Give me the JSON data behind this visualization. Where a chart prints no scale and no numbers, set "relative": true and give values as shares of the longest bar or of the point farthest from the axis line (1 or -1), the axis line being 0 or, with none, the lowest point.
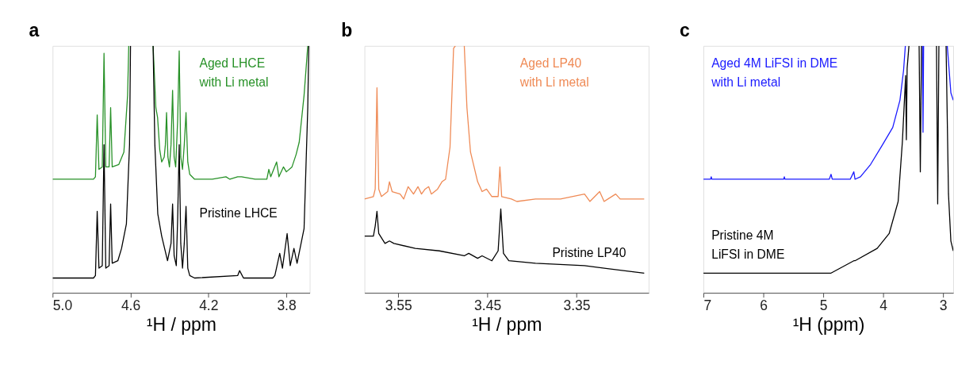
{
  "chart_data": [
    {
      "type": "line",
      "title": "a",
      "xlabel": "¹H / ppm",
      "relative": true,
      "xlim": [
        5.0,
        3.68
      ],
      "xticks": [
        {
          "value": 5.0,
          "label": "5.0"
        },
        4.6,
        4.2,
        3.8
      ],
      "grid": false,
      "series": [
        {
          "name": "Aged LHCE\nwith Li metal",
          "color": "#279127",
          "x": [
            5.0,
            4.79,
            4.78,
            4.771,
            4.762,
            4.745,
            4.736,
            4.727,
            4.71,
            4.702,
            4.694,
            4.66,
            4.634,
            4.615,
            4.609,
            4.55,
            4.484,
            4.47,
            4.461,
            4.45,
            4.44,
            4.427,
            4.421,
            4.415,
            4.408,
            4.4,
            4.392,
            4.384,
            4.376,
            4.368,
            4.358,
            4.35,
            4.342,
            4.333,
            4.324,
            4.315,
            4.306,
            4.296,
            4.271,
            4.18,
            4.11,
            4.09,
            4.05,
            4.03,
            3.96,
            3.9,
            3.89,
            3.88,
            3.85,
            3.838,
            3.815,
            3.8,
            3.771,
            3.75,
            3.734,
            3.709,
            3.69
          ],
          "values": [
            0.46,
            0.46,
            0.47,
            0.72,
            0.5,
            0.51,
            0.97,
            0.51,
            0.51,
            0.75,
            0.51,
            0.52,
            0.57,
            0.8,
            1,
            null,
            1,
            0.75,
            0.71,
            0.58,
            0.53,
            0.55,
            0.6,
            0.73,
            0.55,
            0.51,
            0.6,
            0.82,
            0.55,
            0.51,
            0.7,
            0.98,
            0.55,
            0.5,
            0.6,
            0.73,
            0.53,
            0.48,
            0.46,
            0.46,
            0.47,
            0.46,
            0.47,
            0.47,
            0.46,
            0.46,
            0.5,
            0.47,
            0.53,
            0.47,
            0.51,
            0.49,
            0.51,
            0.56,
            0.61,
            0.8,
            1
          ]
        },
        {
          "name": "Pristine LHCE",
          "color": "#000000",
          "x": [
            5.0,
            4.79,
            4.78,
            4.771,
            4.762,
            4.745,
            4.736,
            4.727,
            4.71,
            4.702,
            4.694,
            4.665,
            4.646,
            4.621,
            4.605,
            4.6,
            4.55,
            4.484,
            4.475,
            4.46,
            4.44,
            4.41,
            4.392,
            4.384,
            4.376,
            4.365,
            4.358,
            4.35,
            4.342,
            4.333,
            4.324,
            4.315,
            4.306,
            4.296,
            4.271,
            4.05,
            4.04,
            4.02,
            3.87,
            3.859,
            3.834,
            3.82,
            3.796,
            3.78,
            3.761,
            3.745,
            3.709,
            3.69,
            3.685
          ],
          "values": [
            0.06,
            0.06,
            0.07,
            0.33,
            0.1,
            0.11,
            0.6,
            0.1,
            0.11,
            0.36,
            0.12,
            0.13,
            0.18,
            0.28,
            0.6,
            1,
            null,
            1,
            0.6,
            0.32,
            0.23,
            0.13,
            0.2,
            0.36,
            0.15,
            0.11,
            0.3,
            0.6,
            0.2,
            0.1,
            0.2,
            0.35,
            0.1,
            0.07,
            0.06,
            0.07,
            0.09,
            0.06,
            0.06,
            0.07,
            0.16,
            0.1,
            0.24,
            0.11,
            0.18,
            0.12,
            0.26,
            0.75,
            1
          ]
        }
      ]
    },
    {
      "type": "line",
      "title": "b",
      "xlabel": "¹H / ppm",
      "relative": true,
      "xlim": [
        3.588,
        3.269
      ],
      "xticks": [
        3.55,
        3.45,
        3.35
      ],
      "grid": false,
      "series": [
        {
          "name": "Aged LP40\nwith Li metal",
          "color": "#ef8a55",
          "x": [
            3.588,
            3.578,
            3.576,
            3.574,
            3.572,
            3.569,
            3.562,
            3.56,
            3.557,
            3.548,
            3.544,
            3.539,
            3.533,
            3.528,
            3.524,
            3.52,
            3.516,
            3.513,
            3.506,
            3.501,
            3.497,
            3.492,
            3.488,
            3.486,
            3.48,
            3.476,
            3.473,
            3.469,
            3.461,
            3.456,
            3.451,
            3.445,
            3.438,
            3.436,
            3.434,
            3.423,
            3.417,
            3.396,
            3.368,
            3.341,
            3.335,
            3.324,
            3.319,
            3.306,
            3.301,
            3.274
          ],
          "values": [
            0.38,
            0.39,
            0.42,
            0.83,
            0.42,
            0.39,
            0.41,
            0.45,
            0.41,
            0.4,
            0.38,
            0.43,
            0.4,
            0.43,
            0.4,
            0.42,
            0.43,
            0.4,
            0.42,
            0.45,
            0.46,
            0.59,
            0.99,
            1,
            null,
            1,
            0.75,
            0.57,
            0.45,
            0.41,
            0.42,
            0.39,
            0.39,
            0.51,
            0.39,
            0.38,
            0.37,
            0.38,
            0.38,
            0.4,
            0.37,
            0.41,
            0.37,
            0.4,
            0.38,
            0.38
          ]
        },
        {
          "name": "Pristine LP40",
          "color": "#000000",
          "x": [
            3.588,
            3.578,
            3.576,
            3.574,
            3.572,
            3.565,
            3.56,
            3.555,
            3.531,
            3.504,
            3.476,
            3.471,
            3.461,
            3.456,
            3.445,
            3.438,
            3.435,
            3.432,
            3.426,
            3.396,
            3.341,
            3.274
          ],
          "values": [
            0.23,
            0.23,
            0.27,
            0.33,
            0.24,
            0.2,
            0.21,
            0.2,
            0.18,
            0.17,
            0.15,
            0.16,
            0.14,
            0.15,
            0.13,
            0.17,
            0.34,
            0.16,
            0.13,
            0.12,
            0.11,
            0.08
          ]
        }
      ]
    },
    {
      "type": "line",
      "title": "c",
      "xlabel": "¹H (ppm)",
      "relative": true,
      "xlim": [
        7,
        2.83
      ],
      "xticks": [
        7,
        6,
        5,
        4,
        3
      ],
      "grid": false,
      "series": [
        {
          "name": "Aged 4M LiFSI in DME\nwith Li metal",
          "color": "#1a1aff",
          "x": [
            7.0,
            6.88,
            6.87,
            6.86,
            5.66,
            5.65,
            5.64,
            4.9,
            4.87,
            4.85,
            4.55,
            4.49,
            4.47,
            4.38,
            4.21,
            4.01,
            3.84,
            3.72,
            3.66,
            3.63,
            3.5,
            3.345,
            3.335,
            3.325,
            3.1,
            2.93,
            2.87,
            2.83
          ],
          "values": [
            0.46,
            0.46,
            0.47,
            0.46,
            0.46,
            0.47,
            0.46,
            0.46,
            0.48,
            0.46,
            0.46,
            0.49,
            0.46,
            0.47,
            0.52,
            0.6,
            0.67,
            0.78,
            0.9,
            1,
            null,
            1,
            0.65,
            1,
            null,
            1,
            0.81,
            0.78
          ]
        },
        {
          "name": "Pristine 4M\nLiFSI in DME",
          "color": "#000000",
          "x": [
            7.0,
            4.87,
            4.49,
            4.47,
            4.1,
            3.9,
            3.75,
            3.68,
            3.625,
            3.613,
            3.6,
            3.57,
            3.45,
            3.4,
            3.38,
            3.36,
            3.2,
            3.11,
            3.09,
            3.07,
            3.0,
            2.95,
            2.91,
            2.87,
            2.83
          ],
          "values": [
            0.08,
            0.08,
            0.13,
            0.13,
            0.18,
            0.24,
            0.37,
            0.61,
            0.88,
            0.62,
            0.91,
            1,
            null,
            1,
            0.49,
            1,
            null,
            1,
            0.36,
            1,
            null,
            1,
            0.4,
            0.21,
            0.17
          ]
        }
      ]
    }
  ]
}
